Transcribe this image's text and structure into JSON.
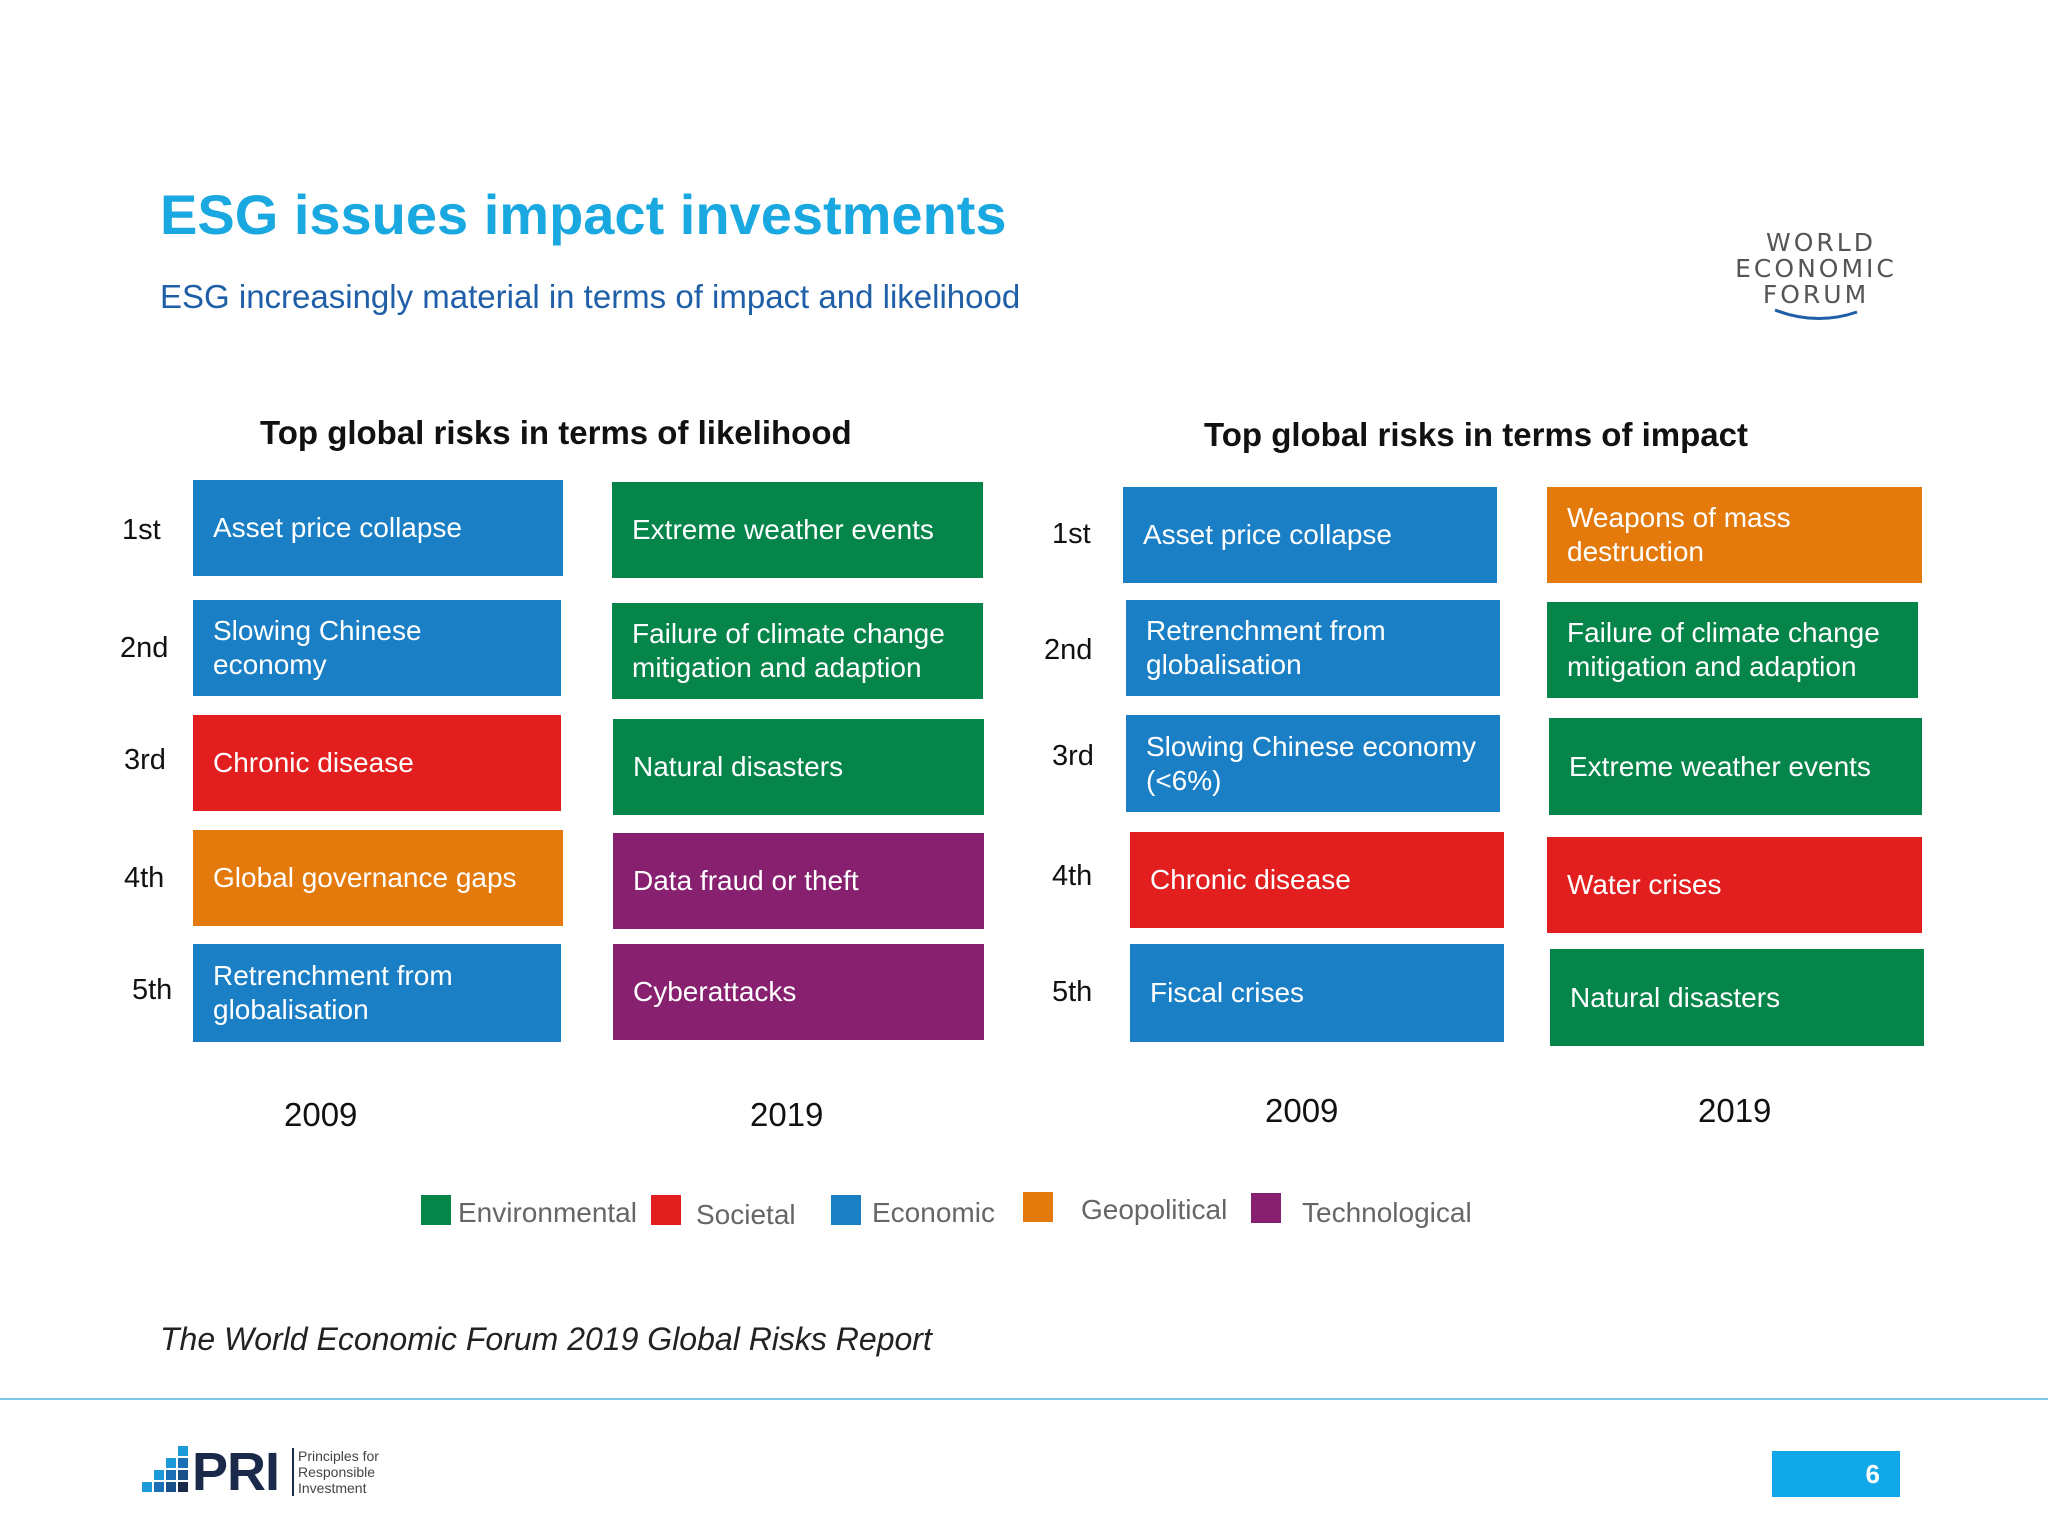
{
  "slide": {
    "title": "ESG issues impact investments",
    "subtitle": "ESG increasingly material in terms of impact and likelihood",
    "caption": "The World Economic Forum 2019 Global Risks Report",
    "page_number": "6"
  },
  "wef_logo": {
    "line1": "WORLD",
    "line2": "ECONOMIC",
    "line3": "FORUM"
  },
  "pri_logo": {
    "mark": "PRI",
    "tag1": "Principles for",
    "tag2": "Responsible",
    "tag3": "Investment"
  },
  "ranks": [
    "1st",
    "2nd",
    "3rd",
    "4th",
    "5th"
  ],
  "colors": {
    "Environmental": "#06854a",
    "Societal": "#e31e1e",
    "Economic": "#1a7fc4",
    "Geopolitical": "#e4790c",
    "Technological": "#87206e"
  },
  "likelihood": {
    "title": "Top global risks in terms of likelihood",
    "col2009": {
      "year": "2009",
      "items": [
        {
          "label": "Asset price collapse",
          "category": "Economic"
        },
        {
          "label": "Slowing Chinese economy",
          "category": "Economic"
        },
        {
          "label": "Chronic disease",
          "category": "Societal"
        },
        {
          "label": "Global governance gaps",
          "category": "Geopolitical"
        },
        {
          "label": "Retrenchment from globalisation",
          "category": "Economic"
        }
      ]
    },
    "col2019": {
      "year": "2019",
      "items": [
        {
          "label": "Extreme weather events",
          "category": "Environmental"
        },
        {
          "label": "Failure of climate change mitigation and adaption",
          "category": "Environmental"
        },
        {
          "label": "Natural disasters",
          "category": "Environmental"
        },
        {
          "label": "Data fraud or theft",
          "category": "Technological"
        },
        {
          "label": "Cyberattacks",
          "category": "Technological"
        }
      ]
    }
  },
  "impact": {
    "title": "Top global risks in terms of impact",
    "col2009": {
      "year": "2009",
      "items": [
        {
          "label": "Asset price collapse",
          "category": "Economic"
        },
        {
          "label": "Retrenchment from globalisation",
          "category": "Economic"
        },
        {
          "label": "Slowing Chinese economy (<6%)",
          "category": "Economic"
        },
        {
          "label": "Chronic disease",
          "category": "Societal"
        },
        {
          "label": "Fiscal crises",
          "category": "Economic"
        }
      ]
    },
    "col2019": {
      "year": "2019",
      "items": [
        {
          "label": "Weapons of mass destruction",
          "category": "Geopolitical"
        },
        {
          "label": "Failure of climate change mitigation and adaption",
          "category": "Environmental"
        },
        {
          "label": "Extreme weather events",
          "category": "Environmental"
        },
        {
          "label": "Water crises",
          "category": "Societal"
        },
        {
          "label": "Natural disasters",
          "category": "Environmental"
        }
      ]
    }
  },
  "legend": [
    {
      "label": "Environmental",
      "color": "#06854a"
    },
    {
      "label": "Societal",
      "color": "#e31e1e"
    },
    {
      "label": "Economic",
      "color": "#1a7fc4"
    },
    {
      "label": "Geopolitical",
      "color": "#e4790c"
    },
    {
      "label": "Technological",
      "color": "#87206e"
    }
  ]
}
